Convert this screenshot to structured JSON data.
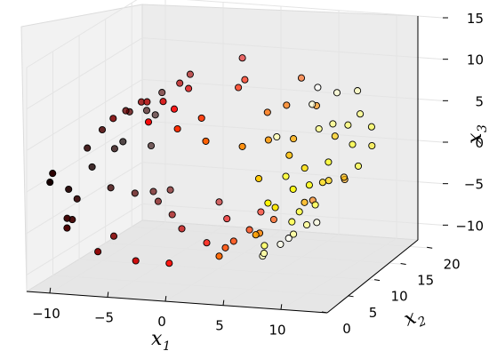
{
  "chart_data": {
    "type": "scatter",
    "projection": "3d",
    "title": "",
    "colormap": "hot",
    "grid": true,
    "x_axis": {
      "label": "x",
      "label_subscript": "1",
      "range": [
        -12,
        14
      ],
      "ticks": [
        {
          "value": -10,
          "label": "−10"
        },
        {
          "value": -5,
          "label": "−5"
        },
        {
          "value": 0,
          "label": "0"
        },
        {
          "value": 5,
          "label": "5"
        },
        {
          "value": 10,
          "label": "10"
        }
      ]
    },
    "y_axis": {
      "label": "x",
      "label_subscript": "2",
      "range": [
        0,
        22
      ],
      "ticks": [
        {
          "value": 0,
          "label": "0"
        },
        {
          "value": 5,
          "label": "5"
        },
        {
          "value": 10,
          "label": "10"
        },
        {
          "value": 15,
          "label": "15"
        },
        {
          "value": 20,
          "label": "20"
        }
      ]
    },
    "z_axis": {
      "label": "x",
      "label_subscript": "3",
      "range": [
        -12,
        15
      ],
      "ticks": [
        {
          "value": -10,
          "label": "−10"
        },
        {
          "value": -5,
          "label": "−5"
        },
        {
          "value": 0,
          "label": "0"
        },
        {
          "value": 5,
          "label": "5"
        },
        {
          "value": 10,
          "label": "10"
        },
        {
          "value": 15,
          "label": "15"
        }
      ]
    },
    "series": [
      {
        "points": [
          [
            -9.95,
            0.43,
            2.27,
            0.058
          ],
          [
            -10.08,
            0.21,
            1.28,
            0.031
          ],
          [
            -10.05,
            20.2,
            1.61,
            0.058
          ],
          [
            -9.81,
            4.77,
            -2.48,
            0.07
          ],
          [
            -9.98,
            12.3,
            0.63,
            0.049
          ],
          [
            -9.91,
            19.1,
            -1.66,
            0.055
          ],
          [
            -9.54,
            10.6,
            -3.38,
            0.083
          ],
          [
            -9.33,
            2.81,
            -4.16,
            0.092
          ],
          [
            -9.06,
            7.91,
            4.71,
            0.103
          ],
          [
            -8.72,
            13.4,
            -5.05,
            0.117
          ],
          [
            -8.31,
            16.0,
            -5.82,
            0.136
          ],
          [
            -7.84,
            18.2,
            -6.43,
            0.156
          ],
          [
            -7.31,
            6.15,
            6.93,
            0.179
          ],
          [
            -6.72,
            1.94,
            -7.43,
            0.2
          ],
          [
            -6.09,
            14.7,
            -7.88,
            0.224
          ],
          [
            -5.42,
            8.44,
            8.23,
            0.247
          ],
          [
            -4.71,
            20.6,
            -8.52,
            0.27
          ],
          [
            -3.98,
            3.12,
            -8.73,
            0.292
          ],
          [
            -3.22,
            11.5,
            8.86,
            0.316
          ],
          [
            -2.45,
            17.1,
            -8.94,
            0.34
          ],
          [
            -1.67,
            5.36,
            8.93,
            0.362
          ],
          [
            -0.89,
            9.82,
            -8.86,
            0.385
          ],
          [
            -0.12,
            15.4,
            8.71,
            0.408
          ],
          [
            0.65,
            0.88,
            8.52,
            0.43
          ],
          [
            1.41,
            12.9,
            -8.26,
            0.452
          ],
          [
            2.14,
            6.72,
            -7.95,
            0.474
          ],
          [
            2.86,
            19.6,
            7.58,
            0.495
          ],
          [
            3.55,
            2.43,
            -7.15,
            0.517
          ],
          [
            4.21,
            13.8,
            6.68,
            0.538
          ],
          [
            4.84,
            7.29,
            -6.15,
            0.559
          ],
          [
            5.43,
            16.8,
            5.58,
            0.579
          ],
          [
            5.98,
            4.05,
            -4.96,
            0.6
          ],
          [
            6.49,
            10.1,
            4.31,
            0.62
          ],
          [
            6.95,
            18.7,
            -3.63,
            0.64
          ],
          [
            7.36,
            1.57,
            2.91,
            0.66
          ],
          [
            7.72,
            14.1,
            -2.17,
            0.68
          ],
          [
            8.03,
            8.86,
            1.41,
            0.7
          ],
          [
            8.28,
            21.1,
            -0.64,
            0.72
          ],
          [
            8.47,
            5.68,
            0.14,
            0.74
          ],
          [
            8.61,
            12.1,
            0.92,
            0.76
          ],
          [
            8.69,
            17.6,
            -1.69,
            0.78
          ],
          [
            8.71,
            3.77,
            2.45,
            0.8
          ],
          [
            8.67,
            9.45,
            -3.19,
            0.82
          ],
          [
            8.57,
            15.9,
            3.91,
            0.84
          ],
          [
            8.41,
            0.35,
            -4.59,
            0.86
          ],
          [
            8.19,
            11.2,
            5.24,
            0.88
          ],
          [
            7.91,
            6.98,
            -5.84,
            0.9
          ],
          [
            7.58,
            19.9,
            6.39,
            0.92
          ],
          [
            7.19,
            2.69,
            -6.88,
            0.94
          ],
          [
            6.75,
            13.1,
            7.31,
            0.96
          ],
          [
            6.26,
            8.12,
            -7.67,
            0.98
          ],
          [
            5.73,
            16.4,
            7.96,
            0.995
          ],
          [
            -10.31,
            8.73,
            -0.22,
            0.037
          ],
          [
            -10.44,
            14.9,
            0.41,
            0.022
          ],
          [
            -9.71,
            17.8,
            3.12,
            0.076
          ],
          [
            -10.18,
            3.98,
            -1.05,
            0.044
          ],
          [
            -8.95,
            0.97,
            -4.43,
            0.108
          ],
          [
            -8.51,
            11.9,
            5.37,
            0.128
          ],
          [
            -7.58,
            15.3,
            -6.66,
            0.168
          ],
          [
            -6.41,
            9.54,
            7.69,
            0.212
          ],
          [
            -5.07,
            13.9,
            8.38,
            0.258
          ],
          [
            -3.61,
            7.52,
            8.81,
            0.304
          ],
          [
            -2.06,
            1.31,
            8.91,
            0.351
          ],
          [
            -0.51,
            19.3,
            -8.79,
            0.397
          ],
          [
            1.03,
            4.62,
            8.39,
            0.441
          ],
          [
            2.51,
            15.1,
            -7.77,
            0.484
          ],
          [
            3.88,
            10.9,
            6.92,
            0.527
          ],
          [
            5.14,
            3.35,
            5.87,
            0.569
          ],
          [
            6.24,
            20.4,
            -4.64,
            0.61
          ],
          [
            7.16,
            7.83,
            3.27,
            0.65
          ],
          [
            7.88,
            12.6,
            -1.79,
            0.69
          ],
          [
            8.38,
            1.09,
            0.25,
            0.73
          ],
          [
            8.65,
            16.6,
            1.31,
            0.77
          ],
          [
            8.69,
            6.39,
            -2.83,
            0.81
          ],
          [
            8.49,
            18.4,
            4.26,
            0.85
          ],
          [
            8.06,
            9.17,
            -5.55,
            0.89
          ],
          [
            7.39,
            4.94,
            6.64,
            0.93
          ],
          [
            6.51,
            14.5,
            -7.49,
            0.97
          ],
          [
            -9.86,
            6.84,
            2.84,
            0.064
          ],
          [
            -9.44,
            2.07,
            -3.74,
            0.087
          ],
          [
            -8.88,
            18.9,
            4.93,
            0.11
          ],
          [
            -8.15,
            10.4,
            6.12,
            0.142
          ],
          [
            -7.11,
            5.83,
            -7.11,
            0.186
          ],
          [
            -5.76,
            17.4,
            8.02,
            0.235
          ],
          [
            -4.35,
            12.7,
            -8.63,
            0.281
          ],
          [
            -2.84,
            20.9,
            8.92,
            0.328
          ],
          [
            -1.28,
            3.54,
            -8.91,
            0.374
          ],
          [
            0.27,
            13.3,
            8.62,
            0.419
          ],
          [
            1.78,
            9.08,
            -8.11,
            0.463
          ],
          [
            3.21,
            0.64,
            7.37,
            0.506
          ],
          [
            4.53,
            18.1,
            -6.42,
            0.548
          ],
          [
            5.71,
            7.05,
            5.27,
            0.589
          ],
          [
            6.72,
            11.7,
            -3.97,
            0.63
          ],
          [
            7.54,
            15.7,
            2.54,
            0.67
          ],
          [
            8.16,
            2.96,
            -1.03,
            0.71
          ],
          [
            8.55,
            8.58,
            -0.47,
            0.75
          ],
          [
            8.7,
            20.1,
            2.07,
            0.79
          ],
          [
            8.62,
            5.12,
            -3.56,
            0.83
          ],
          [
            8.31,
            13.6,
            4.92,
            0.87
          ],
          [
            7.76,
            1.72,
            -6.12,
            0.91
          ],
          [
            6.98,
            17.3,
            7.1,
            0.95
          ],
          [
            5.99,
            10.3,
            -7.82,
            0.988
          ]
        ]
      }
    ]
  }
}
